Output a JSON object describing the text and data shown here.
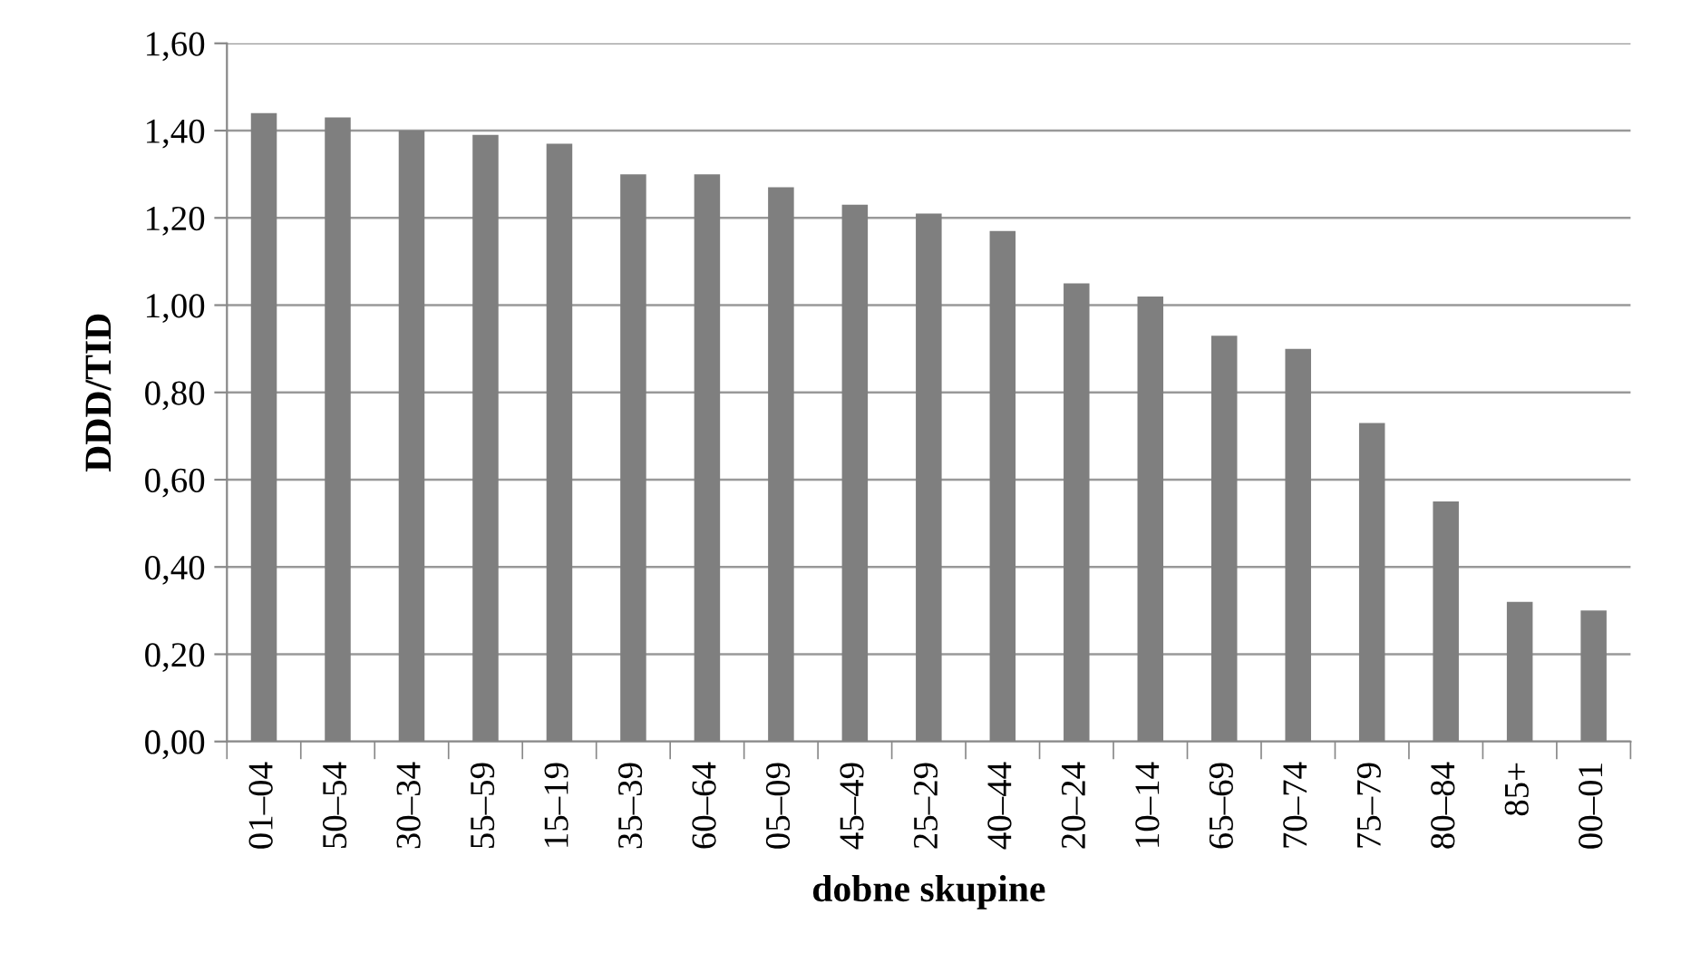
{
  "chart_data": {
    "type": "bar",
    "xlabel": "dobne skupine",
    "ylabel": "DDD/TID",
    "categories": [
      "01–04",
      "50–54",
      "30–34",
      "55–59",
      "15–19",
      "35–39",
      "60–64",
      "05–09",
      "45–49",
      "25–29",
      "40–44",
      "20–24",
      "10–14",
      "65–69",
      "70–74",
      "75–79",
      "80–84",
      "85+",
      "00–01"
    ],
    "values": [
      1.44,
      1.43,
      1.4,
      1.39,
      1.37,
      1.3,
      1.3,
      1.27,
      1.23,
      1.21,
      1.17,
      1.05,
      1.02,
      0.93,
      0.9,
      0.73,
      0.55,
      0.32,
      0.3
    ],
    "color": "#7f7f7f",
    "ylim": [
      0,
      1.6
    ],
    "yticks": [
      {
        "value": 0,
        "label": "0,00"
      },
      {
        "value": 0.2,
        "label": "0,20"
      },
      {
        "value": 0.4,
        "label": "0,40"
      },
      {
        "value": 0.6,
        "label": "0,60"
      },
      {
        "value": 0.8,
        "label": "0,80"
      },
      {
        "value": 1.0,
        "label": "1,00"
      },
      {
        "value": 1.2,
        "label": "1,20"
      },
      {
        "value": 1.4,
        "label": "1,40"
      },
      {
        "value": 1.6,
        "label": "1,60"
      }
    ],
    "grid": "y",
    "legend": false
  }
}
